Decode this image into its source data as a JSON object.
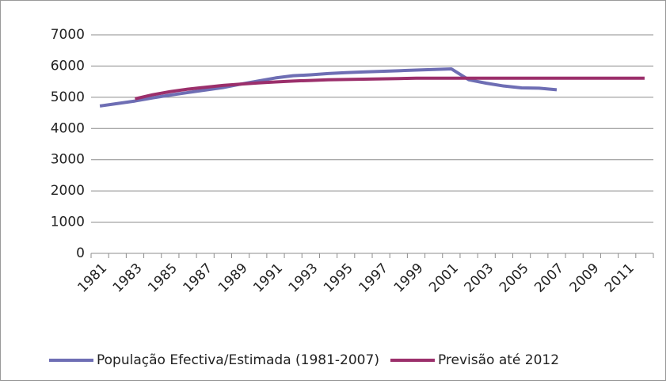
{
  "chart_data": {
    "type": "line",
    "categories": [
      "1981",
      null,
      "1983",
      null,
      "1985",
      null,
      "1987",
      null,
      "1989",
      null,
      "1991",
      null,
      "1993",
      null,
      "1995",
      null,
      "1997",
      null,
      "1999",
      null,
      "2001",
      null,
      "2003",
      null,
      "2005",
      null,
      "2007",
      null,
      "2009",
      null,
      "2011",
      null
    ],
    "series": [
      {
        "name": "População Efectiva/Estimada (1981-2007)",
        "color": "#6e6eb4",
        "values": [
          4720,
          4800,
          4880,
          4980,
          5070,
          5150,
          5230,
          5310,
          5420,
          5520,
          5620,
          5690,
          5720,
          5760,
          5790,
          5810,
          5830,
          5850,
          5870,
          5890,
          5910,
          5560,
          5450,
          5360,
          5300,
          5290,
          5240,
          null,
          null,
          null,
          null,
          null
        ]
      },
      {
        "name": "Previsão até 2012",
        "color": "#9b2f6b",
        "values": [
          null,
          null,
          4950,
          5080,
          5180,
          5260,
          5320,
          5380,
          5420,
          5460,
          5490,
          5520,
          5540,
          5560,
          5570,
          5580,
          5590,
          5600,
          5610,
          5610,
          5610,
          5610,
          5610,
          5610,
          5610,
          5610,
          5610,
          5610,
          5610,
          5610,
          5610,
          5610
        ]
      }
    ],
    "ylim": [
      0,
      7000
    ],
    "yticks": [
      0,
      1000,
      2000,
      3000,
      4000,
      5000,
      6000,
      7000
    ],
    "grid": true
  }
}
